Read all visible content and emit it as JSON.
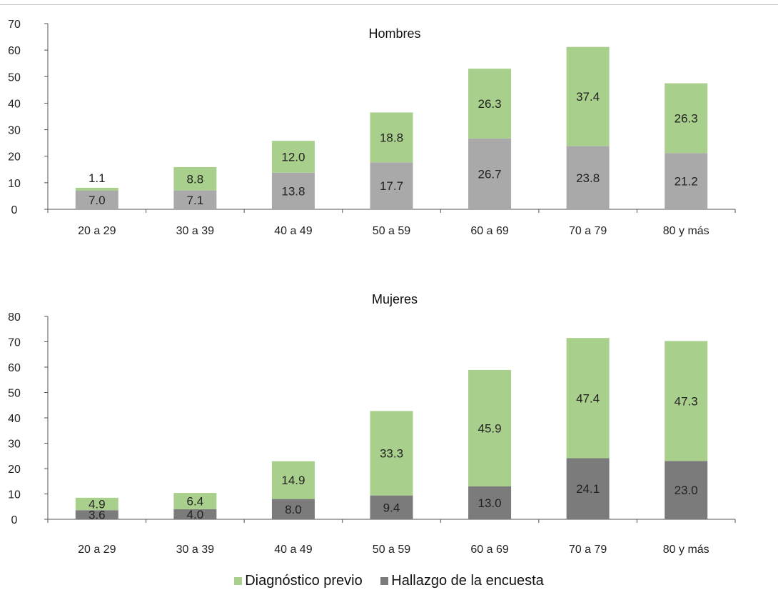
{
  "chart_data": [
    {
      "type": "bar",
      "stacked": true,
      "title": "Hombres",
      "categories": [
        "20 a 29",
        "30 a 39",
        "40 a 49",
        "50 a 59",
        "60 a 69",
        "70 a 79",
        "80 y más"
      ],
      "series": [
        {
          "name": "Hallazgo de la encuesta",
          "color": "#a9a9a9",
          "values": [
            7.0,
            7.1,
            13.8,
            17.7,
            26.7,
            23.8,
            21.2
          ]
        },
        {
          "name": "Diagnóstico previo",
          "color": "#a9cf8c",
          "values": [
            1.1,
            8.8,
            12.0,
            18.8,
            26.3,
            37.4,
            26.3
          ]
        }
      ],
      "ylim": [
        0,
        70
      ],
      "yticks": [
        0,
        10,
        20,
        30,
        40,
        50,
        60,
        70
      ],
      "grid": false
    },
    {
      "type": "bar",
      "stacked": true,
      "title": "Mujeres",
      "categories": [
        "20 a 29",
        "30 a 39",
        "40 a 49",
        "50 a 59",
        "60 a 69",
        "70 a 79",
        "80 y más"
      ],
      "series": [
        {
          "name": "Hallazgo de la encuesta",
          "color": "#7b7b7b",
          "values": [
            3.6,
            4.0,
            8.0,
            9.4,
            13.0,
            24.1,
            23.0
          ]
        },
        {
          "name": "Diagnóstico previo",
          "color": "#a9cf8c",
          "values": [
            4.9,
            6.4,
            14.9,
            33.3,
            45.9,
            47.4,
            47.3
          ]
        }
      ],
      "ylim": [
        0,
        80
      ],
      "yticks": [
        0,
        10,
        20,
        30,
        40,
        50,
        60,
        70,
        80
      ],
      "grid": false
    }
  ],
  "legend": {
    "position": "bottom",
    "items": [
      {
        "label": "Diagnóstico previo",
        "color": "#a9cf8c"
      },
      {
        "label": "Hallazgo de la encuesta",
        "color": "#7b7b7b"
      }
    ]
  }
}
